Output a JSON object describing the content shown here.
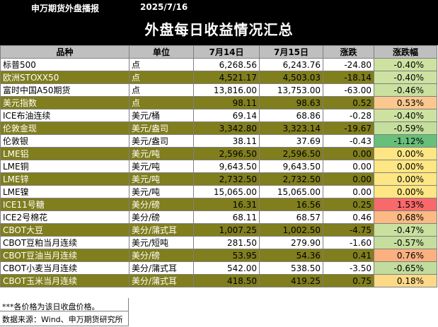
{
  "header": {
    "source": "申万期货外盘播报",
    "date": "2025/7/16"
  },
  "title": "外盘每日收益情况汇总",
  "columns": [
    "品种",
    "单位",
    "7月14日",
    "7月15日",
    "涨跌",
    "涨跌幅"
  ],
  "rows": [
    {
      "name": "标普500",
      "unit": "点",
      "d1": "6,268.56",
      "d2": "6,243.76",
      "chg": "-24.80",
      "pct": "-0.40%",
      "style": "plain",
      "pct_color": "#cde2a1"
    },
    {
      "name": "欧洲STOXX50",
      "unit": "点",
      "d1": "4,521.17",
      "d2": "4,503.03",
      "chg": "-18.14",
      "pct": "-0.40%",
      "style": "olive",
      "pct_color": "#cde2a1"
    },
    {
      "name": "富时中国A50期货",
      "unit": "点",
      "d1": "13,816.00",
      "d2": "13,753.00",
      "chg": "-63.00",
      "pct": "-0.46%",
      "style": "plain",
      "pct_color": "#c9e09f"
    },
    {
      "name": "美元指数",
      "unit": "点",
      "d1": "98.11",
      "d2": "98.63",
      "chg": "0.52",
      "pct": "0.53%",
      "style": "olive",
      "pct_color": "#fac78e"
    },
    {
      "name": "ICE布油连续",
      "unit": "美元/桶",
      "d1": "69.14",
      "d2": "68.86",
      "chg": "-0.28",
      "pct": "-0.40%",
      "style": "plain",
      "pct_color": "#cde2a1"
    },
    {
      "name": "伦敦金现",
      "unit": "美元/盎司",
      "d1": "3,342.80",
      "d2": "3,323.14",
      "chg": "-19.67",
      "pct": "-0.59%",
      "style": "olive",
      "pct_color": "#c4de9d"
    },
    {
      "name": "伦敦银",
      "unit": "美元/盎司",
      "d1": "38.11",
      "d2": "37.69",
      "chg": "-0.43",
      "pct": "-1.12%",
      "style": "plain",
      "pct_color": "#66bf7a"
    },
    {
      "name": "LME铝",
      "unit": "美元/吨",
      "d1": "2,596.50",
      "d2": "2,596.50",
      "chg": "0.00",
      "pct": "0.00%",
      "style": "olive",
      "pct_color": "#fde683"
    },
    {
      "name": "LME铜",
      "unit": "美元/吨",
      "d1": "9,643.50",
      "d2": "9,643.50",
      "chg": "0.00",
      "pct": "0.00%",
      "style": "plain",
      "pct_color": "#fde683"
    },
    {
      "name": "LME锌",
      "unit": "美元/吨",
      "d1": "2,732.50",
      "d2": "2,732.50",
      "chg": "0.00",
      "pct": "0.00%",
      "style": "olive",
      "pct_color": "#fde683"
    },
    {
      "name": "LME镍",
      "unit": "美元/吨",
      "d1": "15,065.00",
      "d2": "15,065.00",
      "chg": "0.00",
      "pct": "0.00%",
      "style": "plain",
      "pct_color": "#fde683"
    },
    {
      "name": "ICE11号糖",
      "unit": "美分/磅",
      "d1": "16.31",
      "d2": "16.56",
      "chg": "0.25",
      "pct": "1.53%",
      "style": "olive",
      "pct_color": "#f8696b"
    },
    {
      "name": "ICE2号棉花",
      "unit": "美分/磅",
      "d1": "68.11",
      "d2": "68.57",
      "chg": "0.46",
      "pct": "0.68%",
      "style": "plain",
      "pct_color": "#fbb983"
    },
    {
      "name": "CBOT大豆",
      "unit": "美分/蒲式耳",
      "d1": "1,007.25",
      "d2": "1,002.50",
      "chg": "-4.75",
      "pct": "-0.47%",
      "style": "olive",
      "pct_color": "#c9e09f"
    },
    {
      "name": "CBOT豆粕当月连续",
      "unit": "美元/短吨",
      "d1": "281.50",
      "d2": "279.90",
      "chg": "-1.60",
      "pct": "-0.57%",
      "style": "plain",
      "pct_color": "#c5de9d"
    },
    {
      "name": "CBOT豆油当月连续",
      "unit": "美分/磅",
      "d1": "53.95",
      "d2": "54.36",
      "chg": "0.41",
      "pct": "0.76%",
      "style": "olive",
      "pct_color": "#fbb080"
    },
    {
      "name": "CBOT小麦当月连续",
      "unit": "美分/蒲式耳",
      "d1": "542.00",
      "d2": "538.50",
      "chg": "-3.50",
      "pct": "-0.65%",
      "style": "plain",
      "pct_color": "#c1dc9c"
    },
    {
      "name": "CBOT玉米当月连续",
      "unit": "美分/蒲式耳",
      "d1": "418.50",
      "d2": "419.25",
      "chg": "0.75",
      "pct": "0.18%",
      "style": "olive",
      "pct_color": "#fcd987"
    }
  ],
  "footer": {
    "note": "***各价格为该日收盘价格。",
    "source": "数据来源：Wind、申万期货研究所"
  }
}
